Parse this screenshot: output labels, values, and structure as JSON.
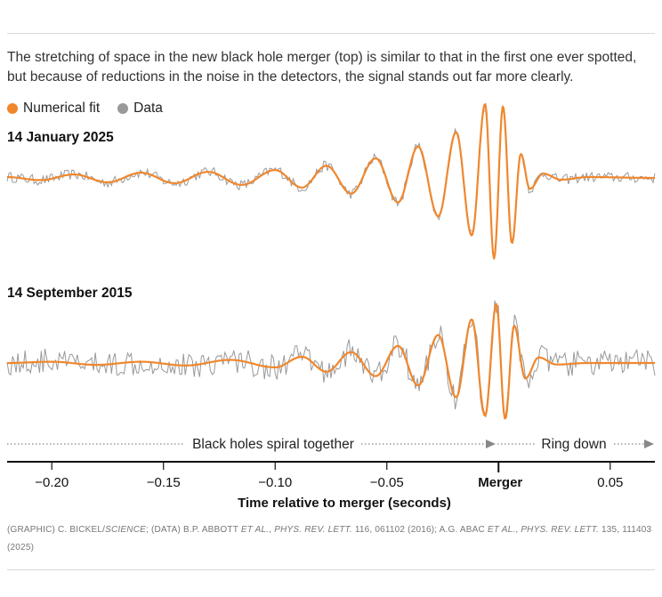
{
  "description": "The stretching of space in the new black hole merger (top) is similar to that in the first one ever spotted, but because of reductions in the noise in the detectors, the signal stands out far more clearly.",
  "legend": [
    {
      "label": "Numerical fit",
      "color": "#f0872d"
    },
    {
      "label": "Data",
      "color": "#999999"
    }
  ],
  "annotations": {
    "spiral": "Black holes spiral together",
    "ringdown": "Ring down"
  },
  "credit": {
    "p1": "(GRAPHIC) C. BICKEL/",
    "p2": "SCIENCE",
    "p3": "; (DATA) B.P. ABBOTT ",
    "p4": "ET AL.",
    "p5": ", ",
    "p6": "PHYS. REV. LETT.",
    "p7": " 116, 061102 (2016); A.G. ABAC ",
    "p8": "ET AL.",
    "p9": ", ",
    "p10": "PHYS. REV. LETT.",
    "p11": " 135, 111403 (2025)"
  },
  "chart_data": {
    "type": "line",
    "xlabel": "Time relative to merger (seconds)",
    "xlim": [
      -0.22,
      0.07
    ],
    "xticks": [
      {
        "value": -0.2,
        "label": "−0.20"
      },
      {
        "value": -0.15,
        "label": "−0.15"
      },
      {
        "value": -0.1,
        "label": "−0.10"
      },
      {
        "value": -0.05,
        "label": "−0.05"
      },
      {
        "value": 0.0,
        "label": "Merger"
      },
      {
        "value": 0.05,
        "label": "0.05"
      }
    ],
    "colors": {
      "fit": "#f0872d",
      "data": "#999999",
      "arrow": "#888888"
    },
    "panels": [
      {
        "title": "14 January 2025",
        "noise": 0.12,
        "fit": [
          [
            -0.22,
            0.02
          ],
          [
            -0.205,
            -0.05
          ],
          [
            -0.19,
            0.08
          ],
          [
            -0.175,
            -0.1
          ],
          [
            -0.16,
            0.12
          ],
          [
            -0.145,
            -0.12
          ],
          [
            -0.13,
            0.14
          ],
          [
            -0.115,
            -0.16
          ],
          [
            -0.1,
            0.18
          ],
          [
            -0.088,
            -0.22
          ],
          [
            -0.077,
            0.28
          ],
          [
            -0.066,
            -0.36
          ],
          [
            -0.055,
            0.45
          ],
          [
            -0.045,
            -0.56
          ],
          [
            -0.036,
            0.72
          ],
          [
            -0.027,
            -0.88
          ],
          [
            -0.019,
            1.05
          ],
          [
            -0.012,
            -1.32
          ],
          [
            -0.006,
            1.7
          ],
          [
            -0.002,
            -1.85
          ],
          [
            0.002,
            1.65
          ],
          [
            0.006,
            -1.5
          ],
          [
            0.01,
            0.55
          ],
          [
            0.014,
            -0.25
          ],
          [
            0.02,
            0.1
          ],
          [
            0.028,
            -0.04
          ],
          [
            0.04,
            0.02
          ],
          [
            0.07,
            0.0
          ]
        ]
      },
      {
        "title": "14 September 2015",
        "noise": 0.42,
        "fit": [
          [
            -0.22,
            0.0
          ],
          [
            -0.2,
            0.04
          ],
          [
            -0.18,
            -0.06
          ],
          [
            -0.16,
            0.04
          ],
          [
            -0.14,
            -0.08
          ],
          [
            -0.12,
            0.1
          ],
          [
            -0.1,
            -0.14
          ],
          [
            -0.088,
            0.2
          ],
          [
            -0.077,
            -0.28
          ],
          [
            -0.066,
            0.35
          ],
          [
            -0.055,
            -0.42
          ],
          [
            -0.045,
            0.55
          ],
          [
            -0.036,
            -0.72
          ],
          [
            -0.027,
            0.9
          ],
          [
            -0.019,
            -1.1
          ],
          [
            -0.012,
            1.4
          ],
          [
            -0.006,
            -1.7
          ],
          [
            -0.001,
            1.9
          ],
          [
            0.003,
            -1.8
          ],
          [
            0.007,
            1.2
          ],
          [
            0.012,
            -0.5
          ],
          [
            0.018,
            0.18
          ],
          [
            0.026,
            -0.05
          ],
          [
            0.04,
            0.0
          ],
          [
            0.07,
            0.0
          ]
        ]
      }
    ]
  }
}
